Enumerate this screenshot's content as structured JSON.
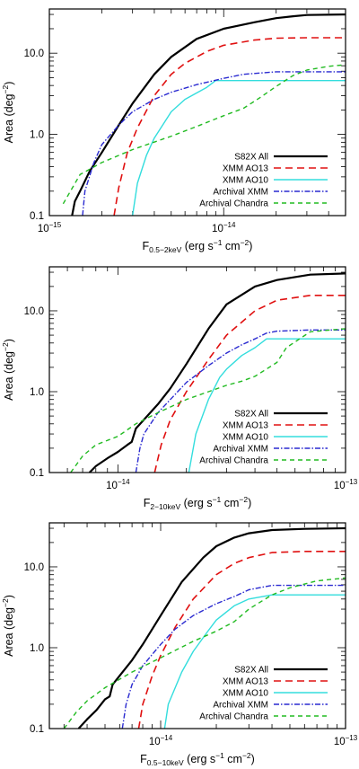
{
  "chart_data": [
    {
      "type": "line",
      "x_scale": "log",
      "y_scale": "log",
      "xlim": [
        1e-15,
        5e-14
      ],
      "ylim": [
        0.1,
        35
      ],
      "xticks": [
        {
          "value": 1e-15,
          "mantissa": "10",
          "exp": "−15"
        },
        {
          "value": 1e-14,
          "mantissa": "10",
          "exp": "−14"
        }
      ],
      "yticks": [
        {
          "value": 0.1,
          "label": "0.1"
        },
        {
          "value": 1,
          "label": "1.0"
        },
        {
          "value": 10,
          "label": "10.0"
        }
      ],
      "xlabel": {
        "pre": "F",
        "sub": "0.5−2keV",
        "post": " (erg s",
        "sup1": "−1",
        "mid": " cm",
        "sup2": "−2",
        "end": ")"
      },
      "ylabel": {
        "pre": "Area (deg",
        "sup": "−2",
        "end": ")"
      },
      "legend_position": "bottom-right",
      "series": [
        {
          "name": "S82X All",
          "color": "#000000",
          "dash": "",
          "width": 2.2,
          "x": [
            1.35e-15,
            1.4e-15,
            1.5e-15,
            1.7e-15,
            2e-15,
            2.5e-15,
            3e-15,
            4e-15,
            5e-15,
            7e-15,
            1e-14,
            1.5e-14,
            2e-14,
            2.5e-14,
            3e-14,
            5e-14
          ],
          "y": [
            0.1,
            0.15,
            0.2,
            0.35,
            0.6,
            1.3,
            2.4,
            5.5,
            9,
            15,
            20,
            24,
            27,
            28.5,
            29.5,
            30
          ]
        },
        {
          "name": "XMM AO13",
          "color": "#e01010",
          "dash": "8,5",
          "width": 1.6,
          "x": [
            2.35e-15,
            2.5e-15,
            2.8e-15,
            3.2e-15,
            4e-15,
            5e-15,
            6e-15,
            8e-15,
            1e-14,
            1.5e-14,
            2e-14,
            3e-14,
            5e-14
          ],
          "y": [
            0.1,
            0.22,
            0.6,
            1.2,
            3,
            5.5,
            7.5,
            10.5,
            12.5,
            14.5,
            15.3,
            15.5,
            15.5
          ]
        },
        {
          "name": "XMM AO10",
          "color": "#33dddd",
          "dash": "",
          "width": 1.4,
          "x": [
            3e-15,
            3.2e-15,
            3.6e-15,
            4e-15,
            5e-15,
            6e-15,
            8e-15,
            9e-15,
            2e-14,
            3e-14,
            5e-14
          ],
          "y": [
            0.1,
            0.25,
            0.55,
            0.9,
            1.9,
            2.7,
            3.8,
            4.6,
            4.6,
            4.6,
            4.6
          ]
        },
        {
          "name": "Archival XMM",
          "color": "#2a2ad0",
          "dash": "6,2,1.5,2",
          "width": 1.4,
          "x": [
            1.55e-15,
            1.6e-15,
            1.8e-15,
            2e-15,
            2.5e-15,
            3e-15,
            4e-15,
            5e-15,
            7e-15,
            1e-14,
            1.3e-14,
            2e-14,
            3e-14,
            5e-14
          ],
          "y": [
            0.1,
            0.2,
            0.45,
            0.75,
            1.3,
            1.9,
            2.7,
            3.3,
            4.1,
            4.9,
            5.5,
            5.9,
            5.9,
            5.9
          ]
        },
        {
          "name": "Archival Chandra",
          "color": "#22bb22",
          "dash": "5,4",
          "width": 1.4,
          "x": [
            1.2e-15,
            1.5e-15,
            2e-15,
            3e-15,
            5e-15,
            7e-15,
            1e-14,
            1.3e-14,
            1.6e-14,
            2e-14,
            2.5e-14,
            3e-14,
            4e-14,
            5e-14
          ],
          "y": [
            0.14,
            0.32,
            0.45,
            0.65,
            0.95,
            1.25,
            1.7,
            2.1,
            2.8,
            3.9,
            5.3,
            6.2,
            6.9,
            7.2
          ]
        }
      ]
    },
    {
      "type": "line",
      "x_scale": "log",
      "y_scale": "log",
      "xlim": [
        5e-15,
        1e-13
      ],
      "ylim": [
        0.1,
        35
      ],
      "xticks": [
        {
          "value": 1e-14,
          "mantissa": "10",
          "exp": "−14"
        },
        {
          "value": 1e-13,
          "mantissa": "10",
          "exp": "−13"
        }
      ],
      "yticks": [
        {
          "value": 0.1,
          "label": "0.1"
        },
        {
          "value": 1,
          "label": "1.0"
        },
        {
          "value": 10,
          "label": "10.0"
        }
      ],
      "xlabel": {
        "pre": "F",
        "sub": "2−10keV",
        "post": " (erg s",
        "sup1": "−1",
        "mid": " cm",
        "sup2": "−2",
        "end": ")"
      },
      "ylabel": {
        "pre": "Area (deg",
        "sup": "−2",
        "end": ")"
      },
      "legend_position": "bottom-right",
      "series": [
        {
          "name": "S82X All",
          "color": "#000000",
          "dash": "",
          "width": 2.2,
          "x": [
            7.5e-15,
            8e-15,
            9e-15,
            1e-14,
            1.1e-14,
            1.15e-14,
            1.2e-14,
            1.3e-14,
            1.5e-14,
            1.7e-14,
            2e-14,
            2.5e-14,
            3e-14,
            4e-14,
            5e-14,
            7e-14,
            1e-13
          ],
          "y": [
            0.1,
            0.12,
            0.15,
            0.18,
            0.22,
            0.24,
            0.35,
            0.45,
            0.7,
            1.1,
            2.2,
            6,
            12,
            20,
            24,
            28,
            29
          ]
        },
        {
          "name": "XMM AO13",
          "color": "#e01010",
          "dash": "8,5",
          "width": 1.6,
          "x": [
            1.45e-14,
            1.55e-14,
            1.7e-14,
            2e-14,
            2.5e-14,
            3e-14,
            4e-14,
            5e-14,
            7e-14,
            1e-13
          ],
          "y": [
            0.1,
            0.22,
            0.45,
            1.0,
            2.5,
            5,
            10,
            13.5,
            15.5,
            15.5
          ]
        },
        {
          "name": "XMM AO10",
          "color": "#33dddd",
          "dash": "",
          "width": 1.4,
          "x": [
            2.05e-14,
            2.2e-14,
            2.5e-14,
            2.8e-14,
            3e-14,
            3.5e-14,
            4e-14,
            4.5e-14,
            5e-14,
            7e-14,
            1e-13
          ],
          "y": [
            0.1,
            0.3,
            0.8,
            1.5,
            1.9,
            2.8,
            3.5,
            4.5,
            4.5,
            4.5,
            4.5
          ]
        },
        {
          "name": "Archival XMM",
          "color": "#2a2ad0",
          "dash": "6,2,1.5,2",
          "width": 1.4,
          "x": [
            1.2e-14,
            1.25e-14,
            1.3e-14,
            1.5e-14,
            1.7e-14,
            2e-14,
            2.5e-14,
            3e-14,
            3.5e-14,
            4e-14,
            4.5e-14,
            5e-14,
            7e-14,
            1e-13
          ],
          "y": [
            0.1,
            0.2,
            0.3,
            0.55,
            0.8,
            1.3,
            2.1,
            3.0,
            3.8,
            4.5,
            5.3,
            5.6,
            5.8,
            5.8
          ]
        },
        {
          "name": "Archival Chandra",
          "color": "#22bb22",
          "dash": "5,4",
          "width": 1.4,
          "x": [
            6.2e-15,
            7e-15,
            8e-15,
            1e-14,
            1.2e-14,
            1.5e-14,
            2e-14,
            2.5e-14,
            3e-14,
            3.5e-14,
            4e-14,
            5e-14,
            5.5e-14,
            7e-14,
            1e-13
          ],
          "y": [
            0.1,
            0.16,
            0.22,
            0.28,
            0.4,
            0.55,
            0.8,
            1.0,
            1.2,
            1.35,
            1.55,
            2.3,
            3.5,
            5.5,
            6
          ]
        }
      ]
    },
    {
      "type": "line",
      "x_scale": "log",
      "y_scale": "log",
      "xlim": [
        2.5e-15,
        1e-13
      ],
      "ylim": [
        0.1,
        35
      ],
      "xticks": [
        {
          "value": 1e-14,
          "mantissa": "10",
          "exp": "−14"
        },
        {
          "value": 1e-13,
          "mantissa": "10",
          "exp": "−13"
        }
      ],
      "yticks": [
        {
          "value": 0.1,
          "label": "0.1"
        },
        {
          "value": 1,
          "label": "1.0"
        },
        {
          "value": 10,
          "label": "10.0"
        }
      ],
      "xlabel": {
        "pre": "F",
        "sub": "0.5−10keV",
        "post": " (erg s",
        "sup1": "−1",
        "mid": " cm",
        "sup2": "−2",
        "end": ")"
      },
      "ylabel": {
        "pre": "Area (deg",
        "sup": "−2",
        "end": ")"
      },
      "legend_position": "bottom-right",
      "series": [
        {
          "name": "S82X All",
          "color": "#000000",
          "dash": "",
          "width": 2.2,
          "x": [
            3.6e-15,
            4e-15,
            4.5e-15,
            5e-15,
            5.3e-15,
            5.5e-15,
            6e-15,
            7e-15,
            8e-15,
            1e-14,
            1.3e-14,
            1.7e-14,
            2e-14,
            2.5e-14,
            3e-14,
            4e-14,
            6e-14,
            1e-13
          ],
          "y": [
            0.1,
            0.13,
            0.17,
            0.23,
            0.25,
            0.35,
            0.45,
            0.7,
            1.1,
            2.5,
            6.5,
            13,
            18,
            23,
            26,
            28.5,
            29.5,
            30
          ]
        },
        {
          "name": "XMM AO13",
          "color": "#e01010",
          "dash": "8,5",
          "width": 1.6,
          "x": [
            7.6e-15,
            8e-15,
            9e-15,
            1e-14,
            1.2e-14,
            1.5e-14,
            2e-14,
            2.5e-14,
            3e-14,
            4e-14,
            6e-14,
            1e-13
          ],
          "y": [
            0.1,
            0.2,
            0.45,
            0.8,
            1.8,
            4,
            8,
            11,
            13,
            15,
            15.5,
            15.5
          ]
        },
        {
          "name": "XMM AO10",
          "color": "#33dddd",
          "dash": "",
          "width": 1.4,
          "x": [
            1.05e-14,
            1.1e-14,
            1.3e-14,
            1.5e-14,
            1.8e-14,
            2e-14,
            2.5e-14,
            3e-14,
            4e-14,
            6e-14,
            1e-13
          ],
          "y": [
            0.1,
            0.2,
            0.5,
            0.9,
            1.6,
            2.2,
            3.3,
            4.0,
            4.5,
            4.5,
            4.5
          ]
        },
        {
          "name": "Archival XMM",
          "color": "#2a2ad0",
          "dash": "6,2,1.5,2",
          "width": 1.4,
          "x": [
            6.2e-15,
            6.5e-15,
            7e-15,
            8e-15,
            1e-14,
            1.2e-14,
            1.5e-14,
            2e-14,
            2.5e-14,
            3e-14,
            4e-14,
            6e-14,
            1e-13
          ],
          "y": [
            0.1,
            0.2,
            0.35,
            0.6,
            1.1,
            1.7,
            2.5,
            3.5,
            4.3,
            5.2,
            5.9,
            5.9,
            5.9
          ]
        },
        {
          "name": "Archival Chandra",
          "color": "#22bb22",
          "dash": "5,4",
          "width": 1.4,
          "x": [
            3e-15,
            3.5e-15,
            4e-15,
            5e-15,
            7e-15,
            1e-14,
            1.5e-14,
            2e-14,
            2.5e-14,
            3e-14,
            4e-14,
            5e-14,
            7e-14,
            1e-13
          ],
          "y": [
            0.1,
            0.16,
            0.22,
            0.32,
            0.5,
            0.75,
            1.2,
            1.6,
            2.1,
            3.0,
            4.5,
            5.5,
            6.7,
            7.3
          ]
        }
      ]
    }
  ]
}
